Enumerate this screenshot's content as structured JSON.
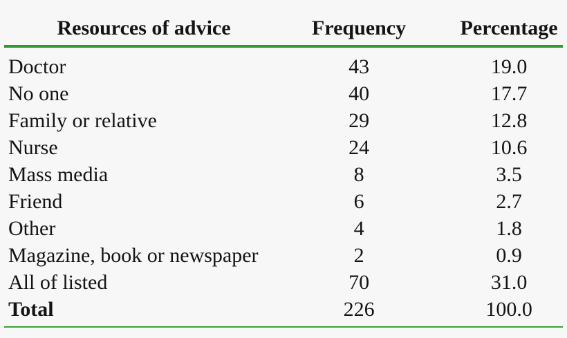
{
  "colors": {
    "background": "#f7f7f7",
    "text": "#141414",
    "rule_green_header": "#2e9b2e",
    "rule_green_bottom": "#3aa43a"
  },
  "table": {
    "headers": {
      "label": "Resources of advice",
      "frequency": "Frequency",
      "percentage": "Percentage"
    },
    "rows": [
      {
        "label": "Doctor",
        "frequency": "43",
        "percentage": "19.0"
      },
      {
        "label": "No one",
        "frequency": "40",
        "percentage": "17.7"
      },
      {
        "label": "Family or relative",
        "frequency": "29",
        "percentage": "12.8"
      },
      {
        "label": "Nurse",
        "frequency": "24",
        "percentage": "10.6"
      },
      {
        "label": "Mass media",
        "frequency": "8",
        "percentage": "3.5"
      },
      {
        "label": "Friend",
        "frequency": "6",
        "percentage": "2.7"
      },
      {
        "label": "Other",
        "frequency": "4",
        "percentage": "1.8"
      },
      {
        "label": "Magazine, book or newspaper",
        "frequency": "2",
        "percentage": "0.9"
      },
      {
        "label": "All of listed",
        "frequency": "70",
        "percentage": "31.0"
      }
    ],
    "total": {
      "label": "Total",
      "frequency": "226",
      "percentage": "100.0"
    }
  },
  "chart_data": {
    "type": "table",
    "title": "",
    "columns": [
      "Resources of advice",
      "Frequency",
      "Percentage"
    ],
    "rows": [
      [
        "Doctor",
        43,
        19.0
      ],
      [
        "No one",
        40,
        17.7
      ],
      [
        "Family or relative",
        29,
        12.8
      ],
      [
        "Nurse",
        24,
        10.6
      ],
      [
        "Mass media",
        8,
        3.5
      ],
      [
        "Friend",
        6,
        2.7
      ],
      [
        "Other",
        4,
        1.8
      ],
      [
        "Magazine, book or newspaper",
        2,
        0.9
      ],
      [
        "All of listed",
        70,
        31.0
      ],
      [
        "Total",
        226,
        100.0
      ]
    ]
  }
}
